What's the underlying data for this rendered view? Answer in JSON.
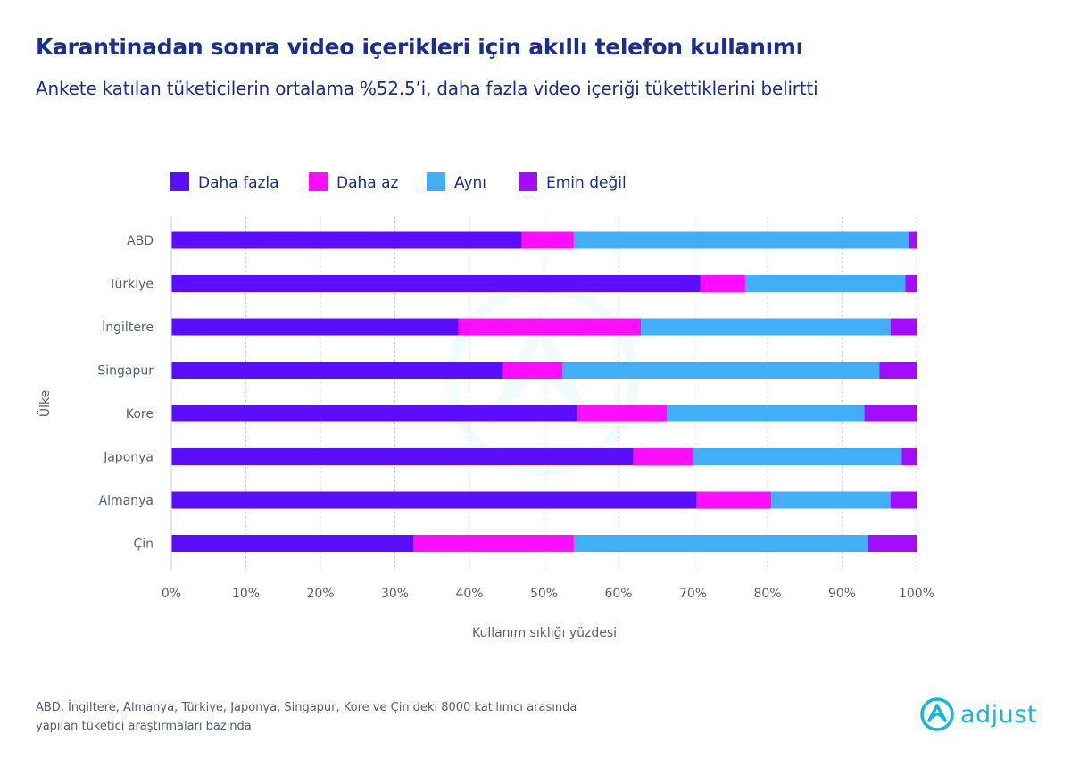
{
  "title": "Karantinadan sonra video içerikleri için akıllı telefon kullanımı",
  "subtitle": "Ankete katılan tüketicilerin ortalama %52.5’i, daha fazla video içeriği tükettiklerini belirtti",
  "footnote": {
    "line1": "ABD, İngiltere, Almanya, Türkiye, Japonya, Singapur, Kore ve Çin’deki 8000 katılımcı arasında",
    "line2": "yapılan tüketici araştırmaları bazında"
  },
  "logo": {
    "text": "adjust",
    "color": "#15b7d8"
  },
  "chart_data": {
    "type": "bar",
    "orientation": "horizontal",
    "stacked": true,
    "xlabel": "Kullanım sıklığı yüzdesi",
    "ylabel": "Ülke",
    "xlim": [
      0,
      100
    ],
    "xticks": [
      "0%",
      "10%",
      "20%",
      "30%",
      "40%",
      "50%",
      "60%",
      "70%",
      "80%",
      "90%",
      "100%"
    ],
    "grid": "vertical dotted",
    "legend_position": "top-left",
    "categories": [
      "ABD",
      "Türkiye",
      "İngiltere",
      "Singapur",
      "Kore",
      "Japonya",
      "Almanya",
      "Çin"
    ],
    "series": [
      {
        "name": "Daha fazla",
        "color": "#5b0dff",
        "values": [
          47,
          71,
          38.5,
          44.5,
          54.5,
          62,
          70.5,
          32.5
        ]
      },
      {
        "name": "Daha az",
        "color": "#ff0dff",
        "values": [
          7,
          6,
          24.5,
          8,
          12,
          8,
          10,
          21.5
        ]
      },
      {
        "name": "Aynı",
        "color": "#42aef5",
        "values": [
          45,
          21.5,
          33.5,
          42.5,
          26.5,
          28,
          16,
          39.5
        ]
      },
      {
        "name": "Emin değil",
        "color": "#a10dff",
        "values": [
          1,
          1.5,
          3.5,
          5,
          7,
          2,
          3.5,
          6.5
        ]
      }
    ]
  }
}
